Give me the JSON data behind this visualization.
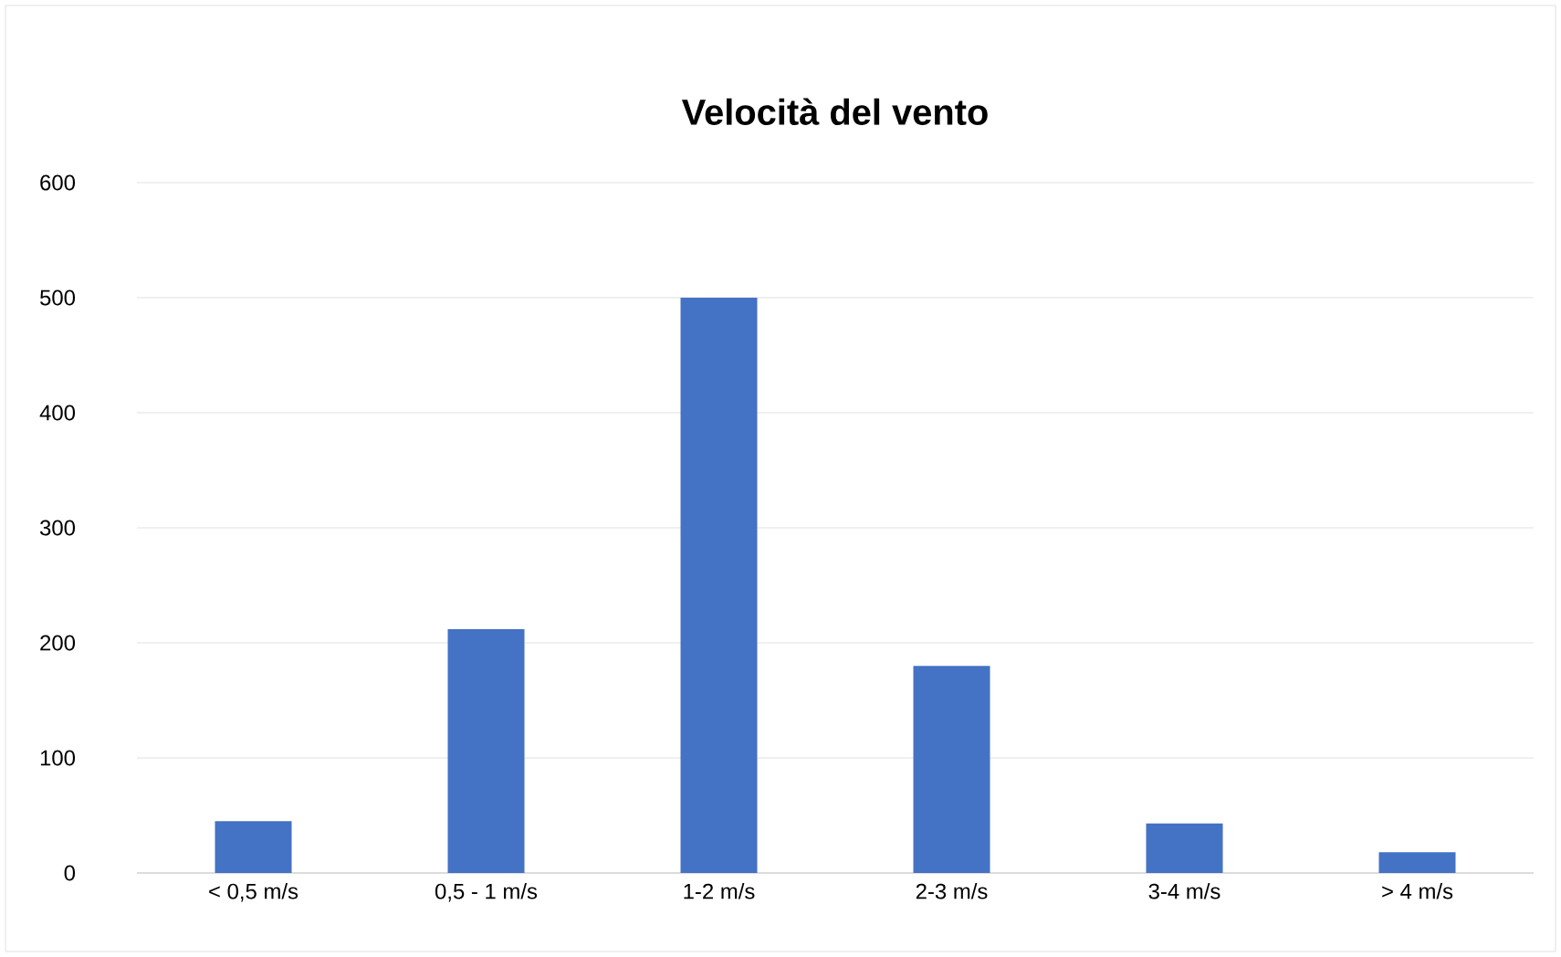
{
  "chart_data": {
    "type": "bar",
    "title": "Velocità del vento",
    "categories": [
      "< 0,5 m/s",
      "0,5 - 1 m/s",
      "1-2 m/s",
      "2-3 m/s",
      "3-4 m/s",
      "> 4 m/s"
    ],
    "values": [
      45,
      212,
      500,
      180,
      43,
      18
    ],
    "color": "#4472c4",
    "ylim": [
      0,
      600
    ],
    "yticks": [
      0,
      100,
      200,
      300,
      400,
      500,
      600
    ],
    "grid": "y"
  }
}
